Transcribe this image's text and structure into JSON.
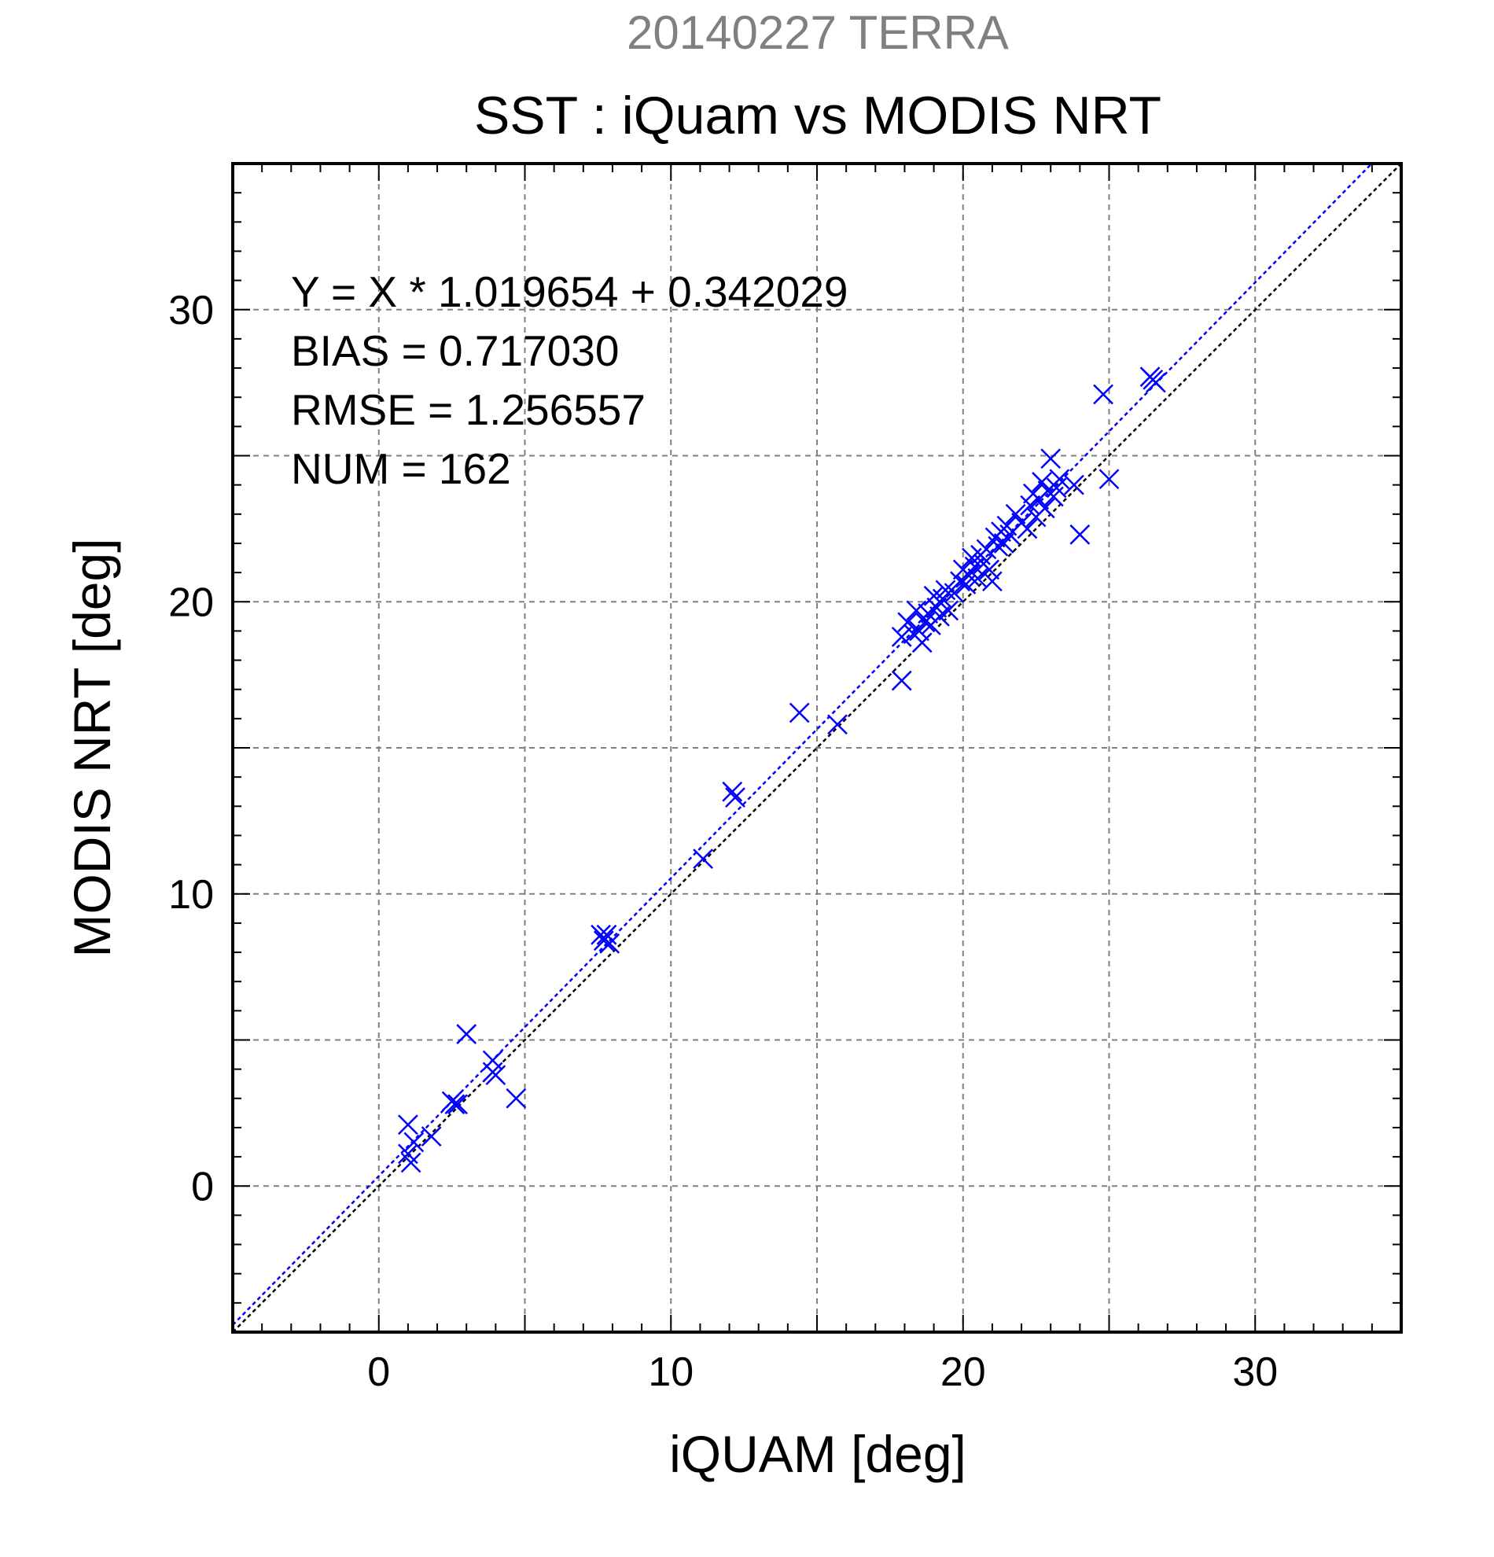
{
  "chart_data": {
    "type": "scatter",
    "supertitle": "20140227 TERRA",
    "title": "SST : iQuam vs MODIS NRT",
    "xlabel": "iQUAM [deg]",
    "ylabel": "MODIS NRT [deg]",
    "xlim": [
      -5,
      35
    ],
    "ylim": [
      -5,
      35
    ],
    "x_ticks": [
      0,
      10,
      20,
      30
    ],
    "y_ticks": [
      0,
      10,
      20,
      30
    ],
    "grid": true,
    "annotations": [
      "Y = X * 1.019654 + 0.342029",
      "BIAS = 0.717030",
      "RMSE = 1.256557",
      "NUM = 162"
    ],
    "regression": {
      "slope": 1.019654,
      "intercept": 0.342029,
      "color": "#0000ff"
    },
    "identity_line": {
      "slope": 1,
      "intercept": 0,
      "color": "#000000"
    },
    "marker": "x",
    "marker_color": "#0000ff",
    "series": [
      {
        "points": [
          [
            1.0,
            2.1
          ],
          [
            1.0,
            1.1
          ],
          [
            1.1,
            0.8
          ],
          [
            1.2,
            1.5
          ],
          [
            1.8,
            1.7
          ],
          [
            2.5,
            2.9
          ],
          [
            2.6,
            2.8
          ],
          [
            2.7,
            2.8
          ],
          [
            3.0,
            5.2
          ],
          [
            3.9,
            4.3
          ],
          [
            3.9,
            3.9
          ],
          [
            4.0,
            3.8
          ],
          [
            4.7,
            3.0
          ],
          [
            7.6,
            8.6
          ],
          [
            7.7,
            8.4
          ],
          [
            7.8,
            8.6
          ],
          [
            7.9,
            8.3
          ],
          [
            11.1,
            11.2
          ],
          [
            12.1,
            13.5
          ],
          [
            12.2,
            13.3
          ],
          [
            14.4,
            16.2
          ],
          [
            15.7,
            15.8
          ],
          [
            17.9,
            18.8
          ],
          [
            17.9,
            17.3
          ],
          [
            18.1,
            19.3
          ],
          [
            18.3,
            18.9
          ],
          [
            18.4,
            19.7
          ],
          [
            18.5,
            19.0
          ],
          [
            18.6,
            18.6
          ],
          [
            18.7,
            19.3
          ],
          [
            18.8,
            19.6
          ],
          [
            18.9,
            19.2
          ],
          [
            19.0,
            20.2
          ],
          [
            19.1,
            19.8
          ],
          [
            19.2,
            19.5
          ],
          [
            19.3,
            20.1
          ],
          [
            19.4,
            20.4
          ],
          [
            19.5,
            19.7
          ],
          [
            19.7,
            20.3
          ],
          [
            19.9,
            20.7
          ],
          [
            20.0,
            21.1
          ],
          [
            20.1,
            20.6
          ],
          [
            20.2,
            20.9
          ],
          [
            20.3,
            21.5
          ],
          [
            20.4,
            21.2
          ],
          [
            20.5,
            20.8
          ],
          [
            20.6,
            21.6
          ],
          [
            20.7,
            21.3
          ],
          [
            20.8,
            21.8
          ],
          [
            20.9,
            21.1
          ],
          [
            21.0,
            20.7
          ],
          [
            21.1,
            22.2
          ],
          [
            21.2,
            21.9
          ],
          [
            21.3,
            22.4
          ],
          [
            21.4,
            22.0
          ],
          [
            21.5,
            22.6
          ],
          [
            21.6,
            22.3
          ],
          [
            21.8,
            23.0
          ],
          [
            22.0,
            22.7
          ],
          [
            22.2,
            22.5
          ],
          [
            22.3,
            23.3
          ],
          [
            22.4,
            23.7
          ],
          [
            22.5,
            22.9
          ],
          [
            22.6,
            23.5
          ],
          [
            22.7,
            24.1
          ],
          [
            22.8,
            23.2
          ],
          [
            22.9,
            23.8
          ],
          [
            23.0,
            24.9
          ],
          [
            23.1,
            23.6
          ],
          [
            23.2,
            23.9
          ],
          [
            23.3,
            24.2
          ],
          [
            23.8,
            24.0
          ],
          [
            24.0,
            22.3
          ],
          [
            24.8,
            27.1
          ],
          [
            25.0,
            24.2
          ],
          [
            26.4,
            27.7
          ],
          [
            26.5,
            27.6
          ],
          [
            26.6,
            27.5
          ]
        ]
      }
    ]
  }
}
